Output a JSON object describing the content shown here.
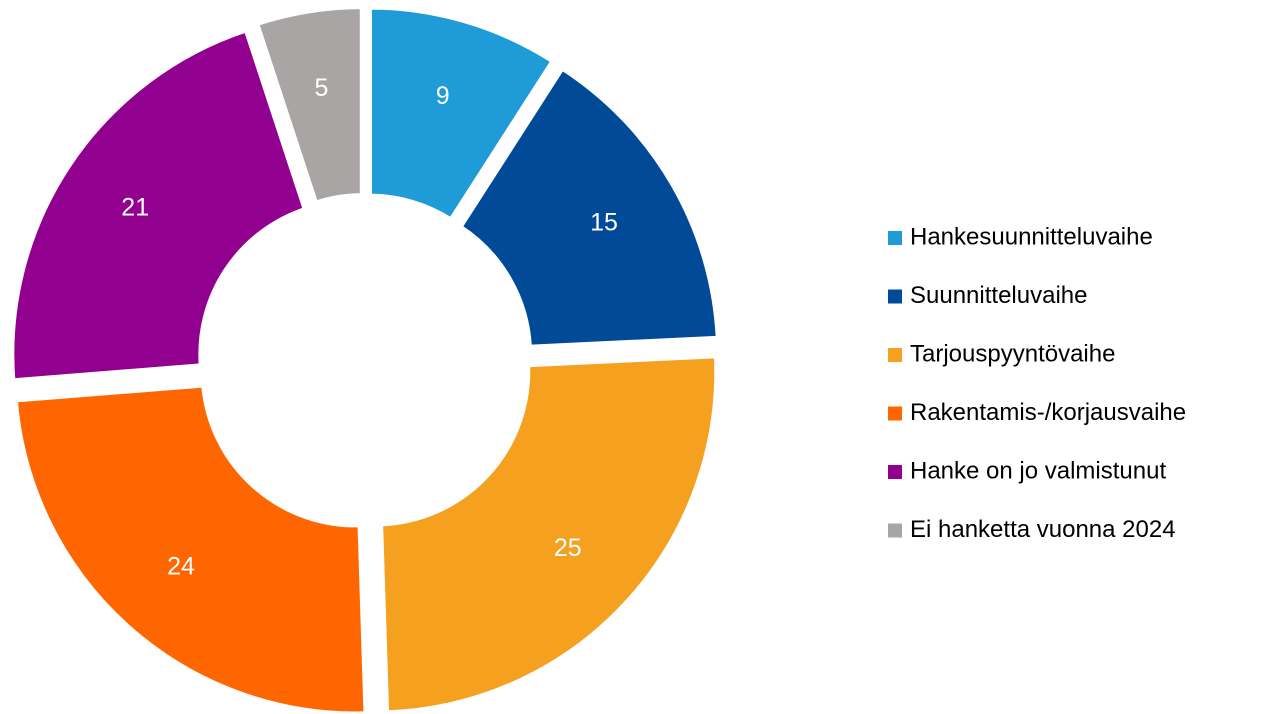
{
  "chart_data": {
    "type": "donut",
    "categories": [
      "Hankesuunnitteluvaihe",
      "Suunnitteluvaihe",
      "Tarjouspyyntövaihe",
      "Rakentamis-/korjausvaihe",
      "Hanke on jo valmistunut",
      "Ei hanketta vuonna 2024"
    ],
    "values": [
      9,
      15,
      25,
      24,
      21,
      5
    ],
    "colors": [
      "#1f9bd7",
      "#004a98",
      "#f6a01f",
      "#ff6600",
      "#92008f",
      "#aaa5a5"
    ],
    "legend": "right"
  }
}
